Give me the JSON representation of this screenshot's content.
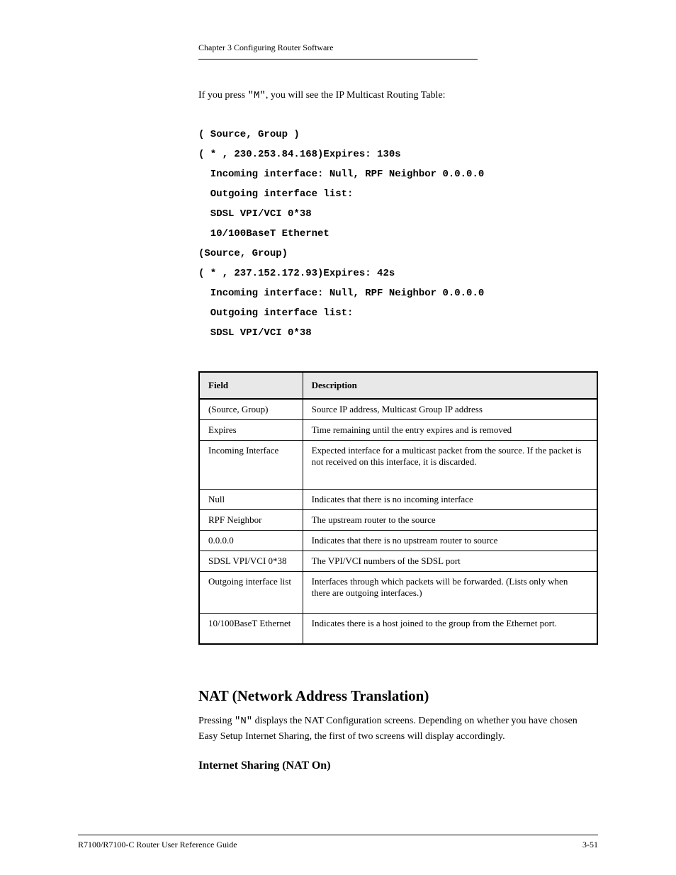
{
  "header": {
    "chapter": "Chapter 3  Configuring Router Software"
  },
  "intro": {
    "prefix": "If you press ",
    "letter": "\"M\"",
    "suffix": ", you will see the IP Multicast Routing Table:"
  },
  "code": {
    "lines": [
      "( Source, Group )",
      "( * , 230.253.84.168)Expires: 130s",
      "  Incoming interface: Null, RPF Neighbor 0.0.0.0",
      "  Outgoing interface list:",
      "  SDSL VPI/VCI 0*38",
      "  10/100BaseT Ethernet",
      "(Source, Group)",
      "( * , 237.152.172.93)Expires: 42s",
      "  Incoming interface: Null, RPF Neighbor 0.0.0.0",
      "  Outgoing interface list:",
      "  SDSL VPI/VCI 0*38"
    ]
  },
  "table": {
    "headers": [
      "Field",
      "Description"
    ],
    "rows": [
      {
        "field": "(Source, Group)",
        "desc": "Source IP address, Multicast Group IP address",
        "height": "normal"
      },
      {
        "field": "Expires",
        "desc": "Time remaining until the entry expires and is removed",
        "height": "normal"
      },
      {
        "field": "Incoming Interface",
        "desc": "Expected interface for a multicast packet from the source. If the packet is not received on this interface, it is discarded.",
        "height": "tall"
      },
      {
        "field": "Null",
        "desc": "Indicates that there is no incoming interface",
        "height": "normal"
      },
      {
        "field": "RPF Neighbor",
        "desc": "The upstream router to the source",
        "height": "normal"
      },
      {
        "field": "0.0.0.0",
        "desc": "Indicates that there is no upstream router to source",
        "height": "normal"
      },
      {
        "field": "SDSL VPI/VCI 0*38",
        "desc": "The VPI/VCI numbers of the SDSL port",
        "height": "normal"
      },
      {
        "field": "Outgoing interface list",
        "desc": "Interfaces through which packets will be forwarded. (Lists only when there are outgoing interfaces.)",
        "height": "medium"
      },
      {
        "field": "10/100BaseT Ethernet",
        "desc": "Indicates there is a host joined to the group from the Ethernet port.",
        "height": "medium"
      }
    ]
  },
  "section": {
    "heading": "NAT (Network Address Translation)",
    "body_prefix": "Pressing ",
    "body_letter": "\"N\"",
    "body_suffix": " displays the NAT Configuration screens. Depending on whether you have chosen Easy Setup Internet Sharing, the first of two screens will display accordingly.",
    "sub_heading": "Internet Sharing (NAT On)"
  },
  "footer": {
    "left": "R7100/R7100-C Router User Reference Guide",
    "right": "3-51"
  }
}
